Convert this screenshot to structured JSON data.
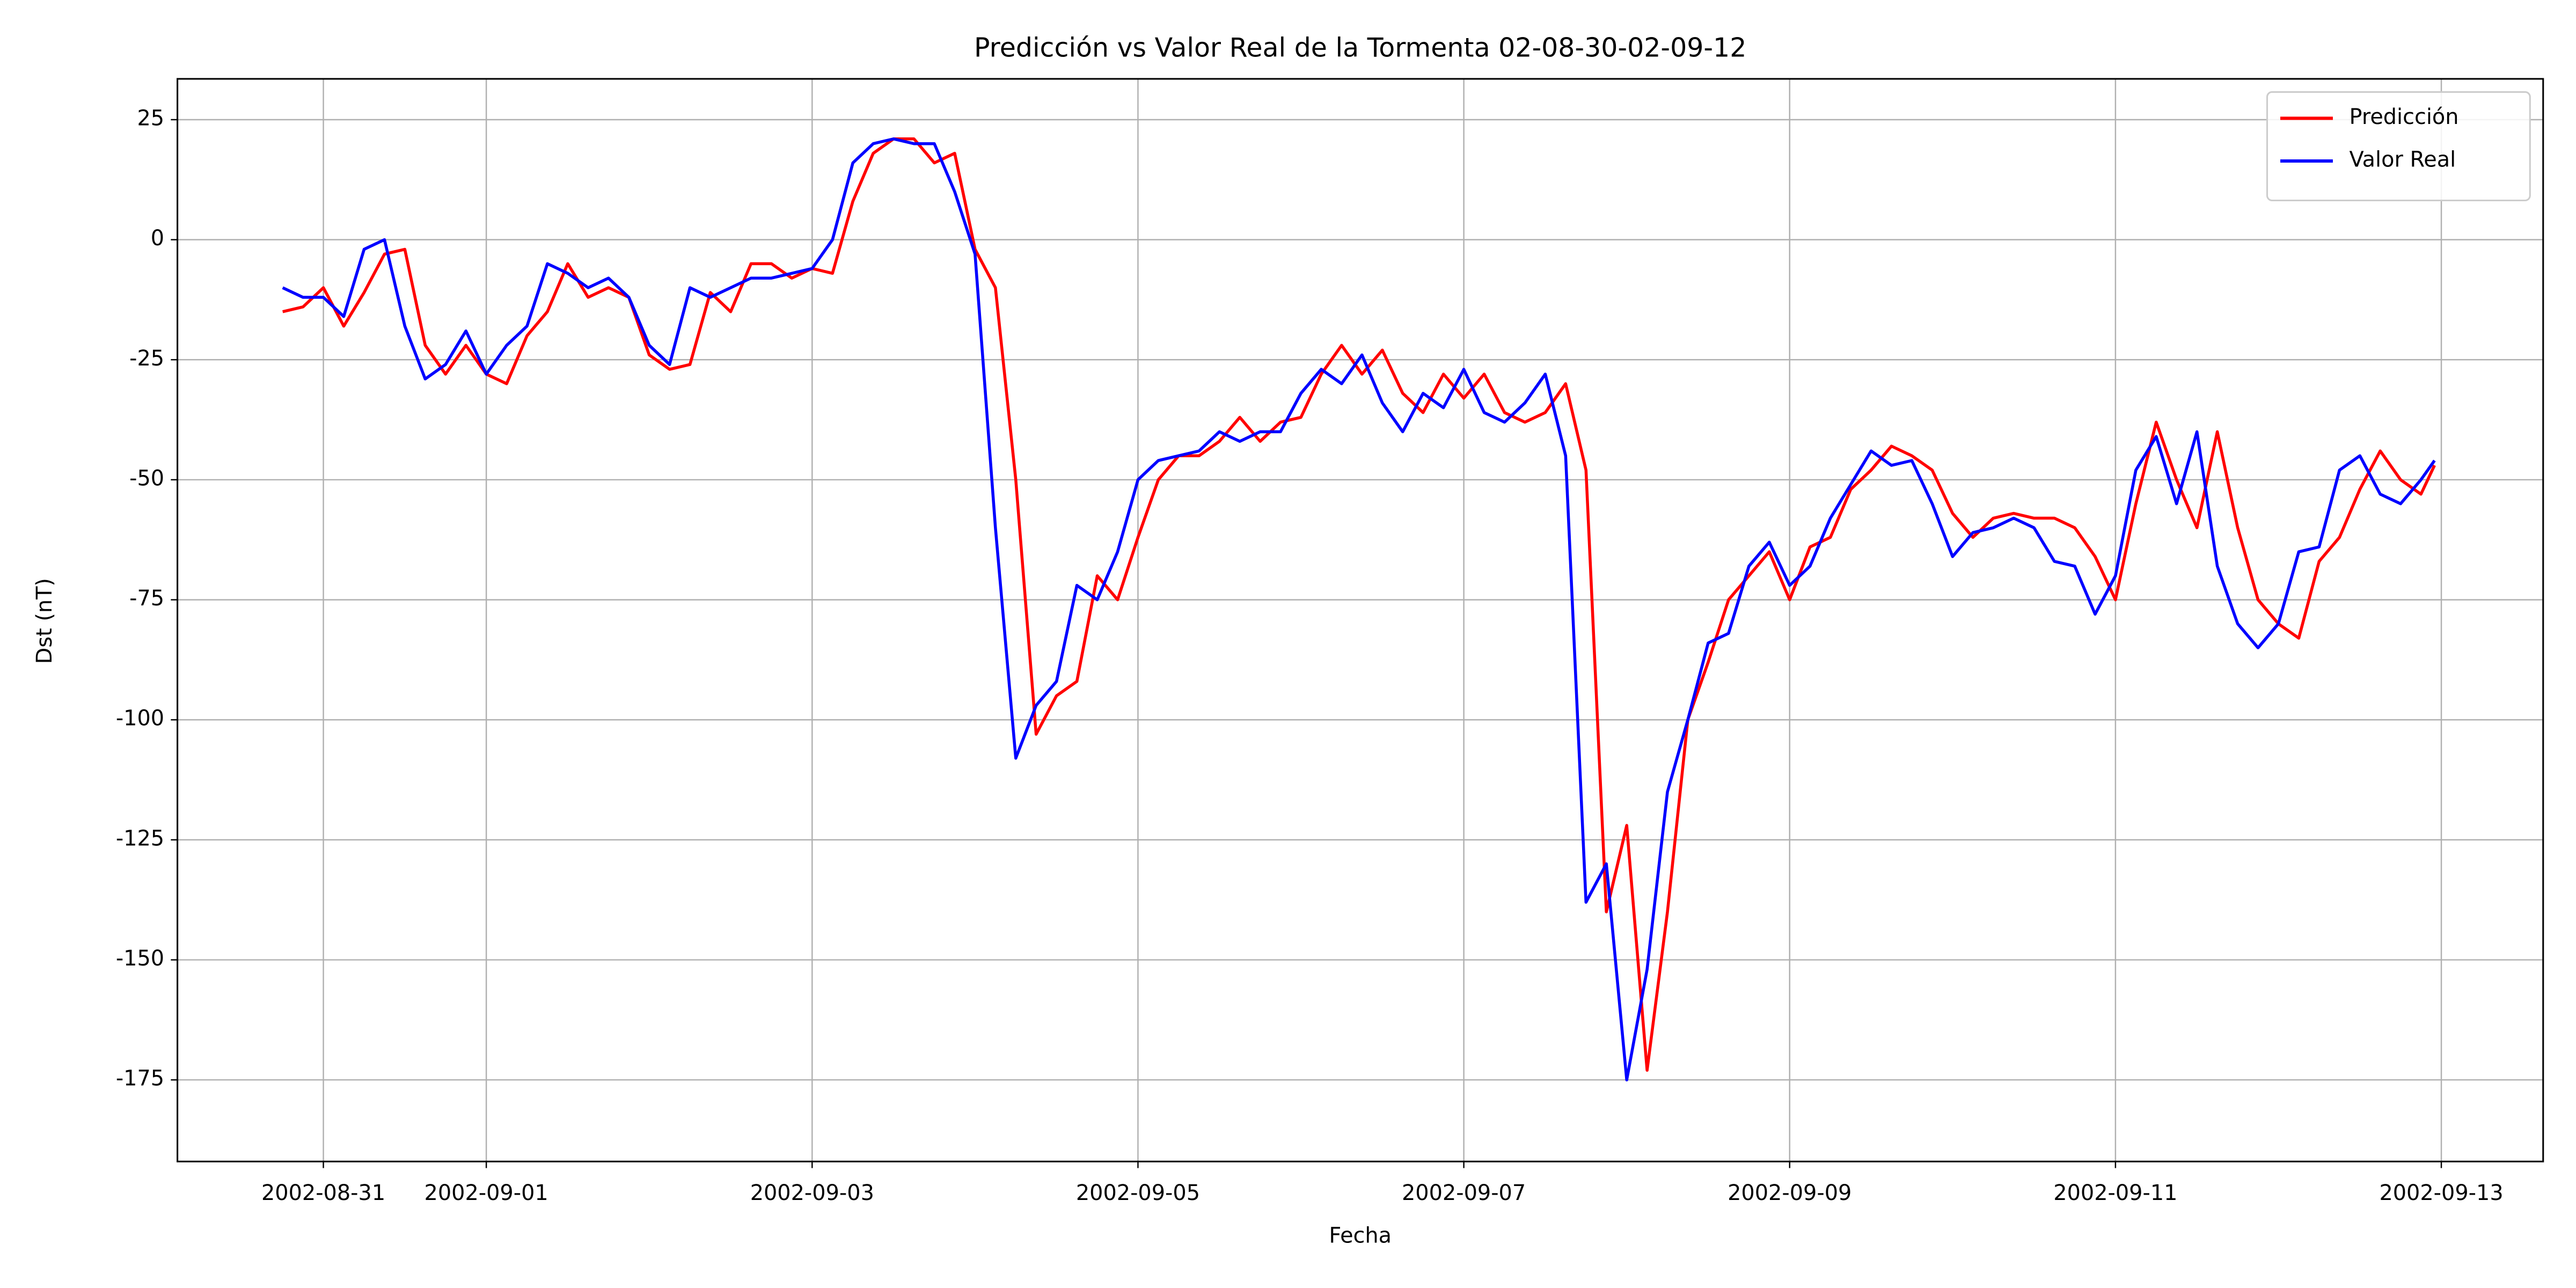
{
  "chart_data": {
    "type": "line",
    "title": "Predicción vs Valor Real de la Tormenta 02-08-30-02-09-12",
    "x_label": "Fecha",
    "y_label": "Dst (nT)",
    "x": [
      "2002-08-30T18:00",
      "2002-08-30T21:00",
      "2002-08-31T00:00",
      "2002-08-31T03:00",
      "2002-08-31T06:00",
      "2002-08-31T09:00",
      "2002-08-31T12:00",
      "2002-08-31T15:00",
      "2002-08-31T18:00",
      "2002-08-31T21:00",
      "2002-09-01T00:00",
      "2002-09-01T03:00",
      "2002-09-01T06:00",
      "2002-09-01T09:00",
      "2002-09-01T12:00",
      "2002-09-01T15:00",
      "2002-09-01T18:00",
      "2002-09-01T21:00",
      "2002-09-02T00:00",
      "2002-09-02T03:00",
      "2002-09-02T06:00",
      "2002-09-02T09:00",
      "2002-09-02T12:00",
      "2002-09-02T15:00",
      "2002-09-02T18:00",
      "2002-09-02T21:00",
      "2002-09-03T00:00",
      "2002-09-03T03:00",
      "2002-09-03T06:00",
      "2002-09-03T09:00",
      "2002-09-03T12:00",
      "2002-09-03T15:00",
      "2002-09-03T18:00",
      "2002-09-03T21:00",
      "2002-09-04T00:00",
      "2002-09-04T03:00",
      "2002-09-04T06:00",
      "2002-09-04T09:00",
      "2002-09-04T12:00",
      "2002-09-04T15:00",
      "2002-09-04T18:00",
      "2002-09-04T21:00",
      "2002-09-05T00:00",
      "2002-09-05T03:00",
      "2002-09-05T06:00",
      "2002-09-05T09:00",
      "2002-09-05T12:00",
      "2002-09-05T15:00",
      "2002-09-05T18:00",
      "2002-09-05T21:00",
      "2002-09-06T00:00",
      "2002-09-06T03:00",
      "2002-09-06T06:00",
      "2002-09-06T09:00",
      "2002-09-06T12:00",
      "2002-09-06T15:00",
      "2002-09-06T18:00",
      "2002-09-06T21:00",
      "2002-09-07T00:00",
      "2002-09-07T03:00",
      "2002-09-07T06:00",
      "2002-09-07T09:00",
      "2002-09-07T12:00",
      "2002-09-07T15:00",
      "2002-09-07T18:00",
      "2002-09-07T21:00",
      "2002-09-08T00:00",
      "2002-09-08T03:00",
      "2002-09-08T06:00",
      "2002-09-08T09:00",
      "2002-09-08T12:00",
      "2002-09-08T15:00",
      "2002-09-08T18:00",
      "2002-09-08T21:00",
      "2002-09-09T00:00",
      "2002-09-09T03:00",
      "2002-09-09T06:00",
      "2002-09-09T09:00",
      "2002-09-09T12:00",
      "2002-09-09T15:00",
      "2002-09-09T18:00",
      "2002-09-09T21:00",
      "2002-09-10T00:00",
      "2002-09-10T03:00",
      "2002-09-10T06:00",
      "2002-09-10T09:00",
      "2002-09-10T12:00",
      "2002-09-10T15:00",
      "2002-09-10T18:00",
      "2002-09-10T21:00",
      "2002-09-11T00:00",
      "2002-09-11T03:00",
      "2002-09-11T06:00",
      "2002-09-11T09:00",
      "2002-09-11T12:00",
      "2002-09-11T15:00",
      "2002-09-11T18:00",
      "2002-09-11T21:00",
      "2002-09-12T00:00",
      "2002-09-12T03:00",
      "2002-09-12T06:00",
      "2002-09-12T09:00",
      "2002-09-12T12:00",
      "2002-09-12T15:00",
      "2002-09-12T18:00",
      "2002-09-12T21:00",
      "2002-09-12T23:00"
    ],
    "series": [
      {
        "name": "Predicción",
        "color": "#ff0000",
        "values": [
          -15,
          -14,
          -10,
          -18,
          -11,
          -3,
          -2,
          -22,
          -28,
          -22,
          -28,
          -30,
          -20,
          -15,
          -5,
          -12,
          -10,
          -12,
          -24,
          -27,
          -26,
          -11,
          -15,
          -5,
          -5,
          -8,
          -6,
          -7,
          8,
          18,
          21,
          21,
          16,
          18,
          -2,
          -10,
          -50,
          -103,
          -95,
          -92,
          -70,
          -75,
          -62,
          -50,
          -45,
          -45,
          -42,
          -37,
          -42,
          -38,
          -37,
          -28,
          -22,
          -28,
          -23,
          -32,
          -36,
          -28,
          -33,
          -28,
          -36,
          -38,
          -36,
          -30,
          -48,
          -140,
          -122,
          -173,
          -140,
          -100,
          -88,
          -75,
          -70,
          -65,
          -75,
          -64,
          -62,
          -52,
          -48,
          -43,
          -45,
          -48,
          -57,
          -62,
          -58,
          -57,
          -58,
          -58,
          -60,
          -66,
          -75,
          -55,
          -38,
          -50,
          -60,
          -40,
          -60,
          -75,
          -80,
          -83,
          -67,
          -62,
          -52,
          -44,
          -50,
          -53,
          -47
        ]
      },
      {
        "name": "Valor Real",
        "color": "#0000ff",
        "values": [
          -10,
          -12,
          -12,
          -16,
          -2,
          0,
          -18,
          -29,
          -26,
          -19,
          -28,
          -22,
          -18,
          -5,
          -7,
          -10,
          -8,
          -12,
          -22,
          -26,
          -10,
          -12,
          -10,
          -8,
          -8,
          -7,
          -6,
          0,
          16,
          20,
          21,
          20,
          20,
          10,
          -3,
          -60,
          -108,
          -97,
          -92,
          -72,
          -75,
          -65,
          -50,
          -46,
          -45,
          -44,
          -40,
          -42,
          -40,
          -40,
          -32,
          -27,
          -30,
          -24,
          -34,
          -40,
          -32,
          -35,
          -27,
          -36,
          -38,
          -34,
          -28,
          -45,
          -138,
          -130,
          -175,
          -152,
          -115,
          -100,
          -84,
          -82,
          -68,
          -63,
          -72,
          -68,
          -58,
          -51,
          -44,
          -47,
          -46,
          -55,
          -66,
          -61,
          -60,
          -58,
          -60,
          -67,
          -68,
          -78,
          -70,
          -48,
          -41,
          -55,
          -40,
          -68,
          -80,
          -85,
          -80,
          -65,
          -64,
          -48,
          -45,
          -53,
          -55,
          -50,
          -46
        ]
      }
    ],
    "xlim": [
      "2002-08-30T02:30",
      "2002-09-13T15:00"
    ],
    "xticks": [
      "2002-08-31",
      "2002-09-01",
      "2002-09-03",
      "2002-09-05",
      "2002-09-07",
      "2002-09-09",
      "2002-09-11",
      "2002-09-13"
    ],
    "ylim": [
      -192,
      33.5
    ],
    "yticks": [
      -175,
      -150,
      -125,
      -100,
      -75,
      -50,
      -25,
      0,
      25
    ],
    "grid": true,
    "legend": "upper right"
  }
}
